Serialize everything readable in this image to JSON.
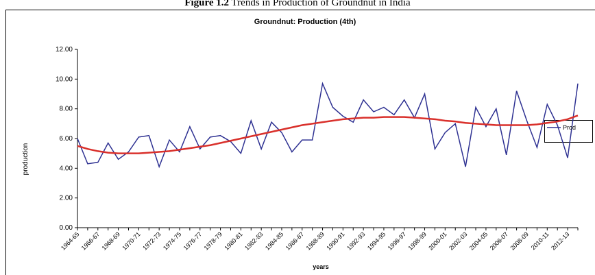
{
  "caption": {
    "label": "Figure 1.2",
    "text": "Trends in Production of Groundnut in India"
  },
  "chart_data": {
    "type": "line",
    "title": "Groundnut: Production (4th)",
    "x_label": "years",
    "y_label": "production",
    "categories": [
      "1964-65",
      null,
      "1966-67",
      null,
      "1968-69",
      null,
      "1970-71",
      null,
      "1972-73",
      null,
      "1974-75",
      null,
      "1976-77",
      null,
      "1978-79",
      null,
      "1980-81",
      null,
      "1982-83",
      null,
      "1984-85",
      null,
      "1986-87",
      null,
      "1988-89",
      null,
      "1990-91",
      null,
      "1992-93",
      null,
      "1994-95",
      null,
      "1996-97",
      null,
      "1998-99",
      null,
      "2000-01",
      null,
      "2002-03",
      null,
      "2004-05",
      null,
      "2006-07",
      null,
      "2008-09",
      null,
      "2010-11",
      null,
      "2012-13",
      null
    ],
    "series": [
      {
        "name": "Prod",
        "color": "#2e3192",
        "values": [
          6.0,
          4.3,
          4.4,
          5.7,
          4.6,
          5.1,
          6.1,
          6.2,
          4.1,
          5.9,
          5.1,
          6.8,
          5.3,
          6.1,
          6.2,
          5.8,
          5.0,
          7.2,
          5.3,
          7.1,
          6.4,
          5.1,
          5.9,
          5.9,
          9.7,
          8.1,
          7.5,
          7.1,
          8.6,
          7.8,
          8.1,
          7.6,
          8.6,
          7.4,
          9.0,
          5.3,
          6.4,
          7.0,
          4.1,
          8.1,
          6.8,
          8.0,
          4.9,
          9.2,
          7.2,
          5.4,
          8.3,
          6.9,
          4.7,
          9.7
        ]
      },
      {
        "color": "#d9302b",
        "values": [
          5.5,
          5.3,
          5.15,
          5.05,
          5.0,
          5.0,
          5.0,
          5.05,
          5.1,
          5.15,
          5.25,
          5.35,
          5.45,
          5.55,
          5.7,
          5.85,
          6.0,
          6.15,
          6.3,
          6.45,
          6.6,
          6.75,
          6.9,
          7.0,
          7.1,
          7.2,
          7.3,
          7.35,
          7.4,
          7.4,
          7.45,
          7.45,
          7.45,
          7.4,
          7.35,
          7.3,
          7.2,
          7.15,
          7.05,
          7.0,
          6.95,
          6.9,
          6.9,
          6.9,
          6.9,
          6.95,
          7.05,
          7.15,
          7.3,
          7.55
        ]
      }
    ],
    "ylim": [
      0,
      12
    ],
    "yticks": [
      {
        "value": 0,
        "label": "0.00"
      },
      {
        "value": 2,
        "label": "2.00"
      },
      {
        "value": 4,
        "label": "4.00"
      },
      {
        "value": 6,
        "label": "6.00"
      },
      {
        "value": 8,
        "label": "8.00"
      },
      {
        "value": 10,
        "label": "10.00"
      },
      {
        "value": 12,
        "label": "12.00"
      }
    ],
    "grid": false,
    "legend": "right"
  }
}
